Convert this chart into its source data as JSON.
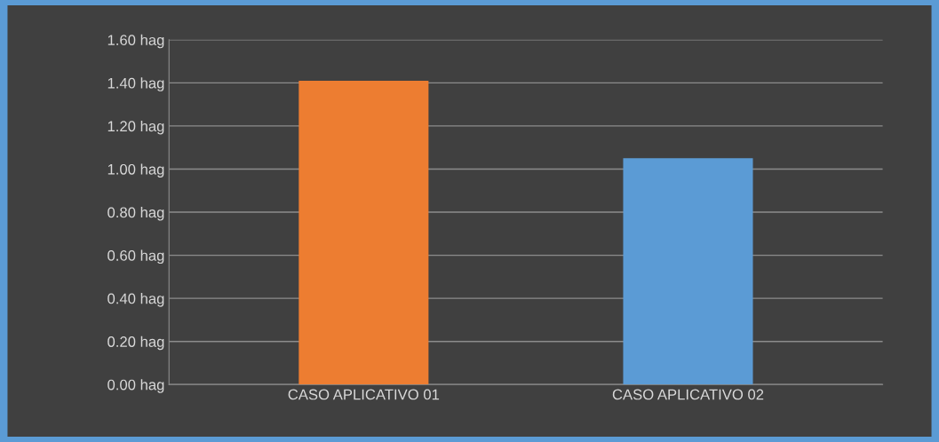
{
  "chart_data": {
    "type": "bar",
    "categories": [
      "CASO APLICATIVO 01",
      "CASO APLICATIVO 02"
    ],
    "values": [
      1.41,
      1.05
    ],
    "colors": [
      "#ed7d31",
      "#5b9bd5"
    ],
    "ylim": [
      0,
      1.6
    ],
    "yticks": [
      {
        "value": 0,
        "label": "0.00 hag"
      },
      {
        "value": 0.2,
        "label": "0.20 hag"
      },
      {
        "value": 0.4,
        "label": "0.40 hag"
      },
      {
        "value": 0.6,
        "label": "0.60 hag"
      },
      {
        "value": 0.8,
        "label": "0.80 hag"
      },
      {
        "value": 1.0,
        "label": "1.00 hag"
      },
      {
        "value": 1.2,
        "label": "1.20 hag"
      },
      {
        "value": 1.4,
        "label": "1.40 hag"
      },
      {
        "value": 1.6,
        "label": "1.60 hag"
      }
    ],
    "grid": "y"
  }
}
